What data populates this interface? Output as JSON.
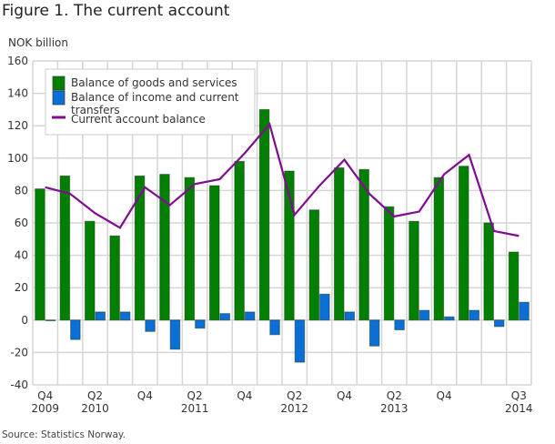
{
  "title": "Figure 1. The current account",
  "source": "Source: Statistics Norway.",
  "chart_data": {
    "type": "bar",
    "title": "Figure 1. The current account",
    "ylabel": "NOK billion",
    "xlabel": "",
    "ylim": [
      -40,
      160
    ],
    "yticks": [
      -40,
      -20,
      0,
      20,
      40,
      60,
      80,
      100,
      120,
      140,
      160
    ],
    "grid": true,
    "legend_position": "top-left",
    "categories": [
      "Q4 2009",
      "Q1 2010",
      "Q2 2010",
      "Q3 2010",
      "Q4 2010",
      "Q1 2011",
      "Q2 2011",
      "Q3 2011",
      "Q4 2011",
      "Q1 2012",
      "Q2 2012",
      "Q3 2012",
      "Q4 2012",
      "Q1 2013",
      "Q2 2013",
      "Q3 2013",
      "Q4 2013",
      "Q1 2014",
      "Q2 2014",
      "Q3 2014"
    ],
    "x_tick_labels": [
      {
        "index": 0,
        "line1": "Q4",
        "line2": "2009"
      },
      {
        "index": 2,
        "line1": "Q2",
        "line2": "2010"
      },
      {
        "index": 4,
        "line1": "Q4",
        "line2": ""
      },
      {
        "index": 6,
        "line1": "Q2",
        "line2": "2011"
      },
      {
        "index": 8,
        "line1": "Q4",
        "line2": ""
      },
      {
        "index": 10,
        "line1": "Q2",
        "line2": "2012"
      },
      {
        "index": 12,
        "line1": "Q4",
        "line2": ""
      },
      {
        "index": 14,
        "line1": "Q2",
        "line2": "2013"
      },
      {
        "index": 16,
        "line1": "Q4",
        "line2": ""
      },
      {
        "index": 19,
        "line1": "Q3",
        "line2": "2014"
      }
    ],
    "series": [
      {
        "name": "Balance of goods and services",
        "type": "bar",
        "color": "#008000",
        "values": [
          81,
          89,
          61,
          52,
          89,
          90,
          88,
          83,
          98,
          130,
          92,
          68,
          94,
          93,
          70,
          61,
          88,
          95,
          60,
          42
        ]
      },
      {
        "name": "Balance of income and current transfers",
        "type": "bar",
        "color": "#0a6fd6",
        "values": [
          0,
          -12,
          5,
          5,
          -7,
          -18,
          -5,
          4,
          5,
          -9,
          -26,
          16,
          5,
          -16,
          -6,
          6,
          2,
          6,
          -4,
          11
        ]
      },
      {
        "name": "Current account balance",
        "type": "line",
        "color": "#7f0d8f",
        "values": [
          82,
          78,
          66,
          57,
          82,
          71,
          84,
          87,
          103,
          121,
          65,
          83,
          99,
          78,
          64,
          67,
          90,
          102,
          55,
          52
        ]
      }
    ],
    "legend": [
      {
        "label_lines": [
          "Balance of goods and services"
        ],
        "kind": "bar",
        "color": "#008000"
      },
      {
        "label_lines": [
          "Balance of income and current",
          "transfers"
        ],
        "kind": "bar",
        "color": "#0a6fd6"
      },
      {
        "label_lines": [
          "Current account balance"
        ],
        "kind": "line",
        "color": "#7f0d8f"
      }
    ]
  }
}
